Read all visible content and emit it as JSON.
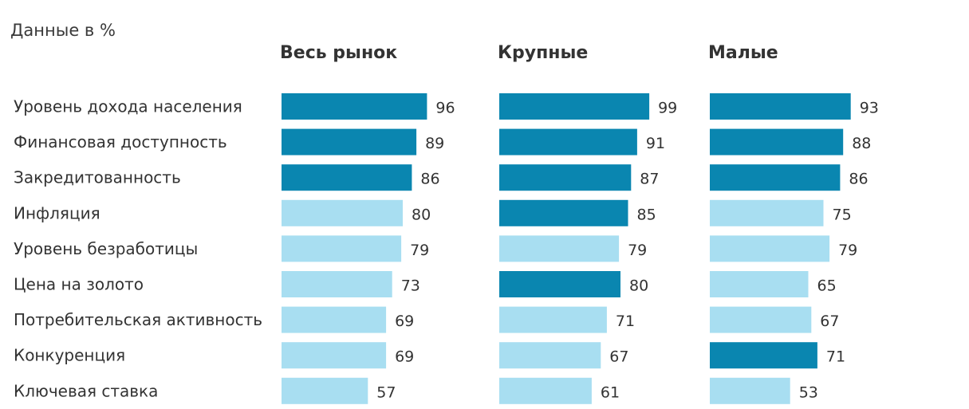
{
  "units_label": "Данные в %",
  "chart_data": {
    "type": "bar",
    "orientation": "horizontal",
    "categories": [
      "Уровень дохода населения",
      "Финансовая доступность",
      "Закредитованность",
      "Инфляция",
      "Уровень безработицы",
      "Цена на золото",
      "Потребительская активность",
      "Конкуренция",
      "Ключевая ставка"
    ],
    "colors": {
      "highlight": "#0a86b0",
      "normal": "#a8def1"
    },
    "panels": [
      {
        "name": "Весь рынок",
        "values": [
          96,
          89,
          86,
          80,
          79,
          73,
          69,
          69,
          57
        ],
        "highlight": [
          true,
          true,
          true,
          false,
          false,
          false,
          false,
          false,
          false
        ]
      },
      {
        "name": "Крупные",
        "values": [
          99,
          91,
          87,
          85,
          79,
          80,
          71,
          67,
          61
        ],
        "highlight": [
          true,
          true,
          true,
          true,
          false,
          true,
          false,
          false,
          false
        ]
      },
      {
        "name": "Малые",
        "values": [
          93,
          88,
          86,
          75,
          79,
          65,
          67,
          71,
          53
        ],
        "highlight": [
          true,
          true,
          true,
          false,
          false,
          false,
          false,
          true,
          false
        ]
      }
    ],
    "xlim": [
      0,
      100
    ],
    "grid": false,
    "legend": "none"
  }
}
